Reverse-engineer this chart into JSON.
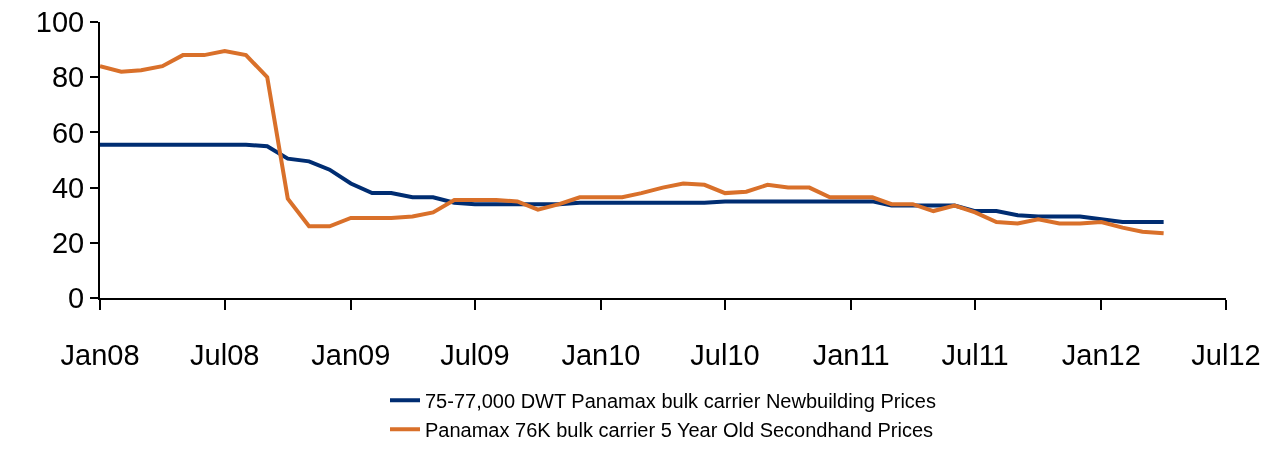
{
  "chart_data": {
    "type": "line",
    "x": [
      "2008-01",
      "2008-02",
      "2008-03",
      "2008-04",
      "2008-05",
      "2008-06",
      "2008-07",
      "2008-08",
      "2008-09",
      "2008-10",
      "2008-11",
      "2008-12",
      "2009-01",
      "2009-02",
      "2009-03",
      "2009-04",
      "2009-05",
      "2009-06",
      "2009-07",
      "2009-08",
      "2009-09",
      "2009-10",
      "2009-11",
      "2009-12",
      "2010-01",
      "2010-02",
      "2010-03",
      "2010-04",
      "2010-05",
      "2010-06",
      "2010-07",
      "2010-08",
      "2010-09",
      "2010-10",
      "2010-11",
      "2010-12",
      "2011-01",
      "2011-02",
      "2011-03",
      "2011-04",
      "2011-05",
      "2011-06",
      "2011-07",
      "2011-08",
      "2011-09",
      "2011-10",
      "2011-11",
      "2011-12",
      "2012-01",
      "2012-02",
      "2012-03",
      "2012-04"
    ],
    "series": [
      {
        "name": "75-77,000 DWT Panamax bulk carrier Newbuilding Prices",
        "color": "#002d72",
        "values": [
          55.5,
          55.5,
          55.5,
          55.5,
          55.5,
          55.5,
          55.5,
          55.5,
          55,
          50.5,
          49.5,
          46.5,
          41.5,
          38,
          38,
          36.5,
          36.5,
          34.5,
          34,
          34,
          34,
          34,
          34,
          34.5,
          34.5,
          34.5,
          34.5,
          34.5,
          34.5,
          34.5,
          35,
          35,
          35,
          35,
          35,
          35,
          35,
          35,
          33.5,
          33.5,
          33.5,
          33.5,
          31.5,
          31.5,
          30,
          29.5,
          29.5,
          29.5,
          28.5,
          27.5,
          27.5,
          27.5
        ]
      },
      {
        "name": "Panamax 76K bulk carrier 5 Year Old Secondhand Prices",
        "color": "#d9702a",
        "values": [
          84,
          82,
          82.5,
          84,
          88,
          88,
          89.5,
          88,
          80,
          36,
          26,
          26,
          29,
          29,
          29,
          29.5,
          31,
          35.5,
          35.5,
          35.5,
          35,
          32,
          34,
          36.5,
          36.5,
          36.5,
          38,
          40,
          41.5,
          41,
          38,
          38.5,
          41,
          40,
          40,
          36.5,
          36.5,
          36.5,
          34,
          34,
          31.5,
          33.5,
          31,
          27.5,
          27,
          28.5,
          27,
          27,
          27.5,
          25.5,
          24,
          23.5
        ]
      }
    ],
    "xlim": [
      "2008-01",
      "2012-07"
    ],
    "xticks": [
      {
        "value": "2008-01",
        "label": "Jan08"
      },
      {
        "value": "2008-07",
        "label": "Jul08"
      },
      {
        "value": "2009-01",
        "label": "Jan09"
      },
      {
        "value": "2009-07",
        "label": "Jul09"
      },
      {
        "value": "2010-01",
        "label": "Jan10"
      },
      {
        "value": "2010-07",
        "label": "Jul10"
      },
      {
        "value": "2011-01",
        "label": "Jan11"
      },
      {
        "value": "2011-07",
        "label": "Jul11"
      },
      {
        "value": "2012-01",
        "label": "Jan12"
      },
      {
        "value": "2012-07",
        "label": "Jul12"
      }
    ],
    "ylim": [
      0,
      100
    ],
    "yticks": [
      0,
      20,
      40,
      60,
      80,
      100
    ],
    "grid": false,
    "legend": "bottom",
    "marker": "none",
    "line_style": "solid"
  }
}
